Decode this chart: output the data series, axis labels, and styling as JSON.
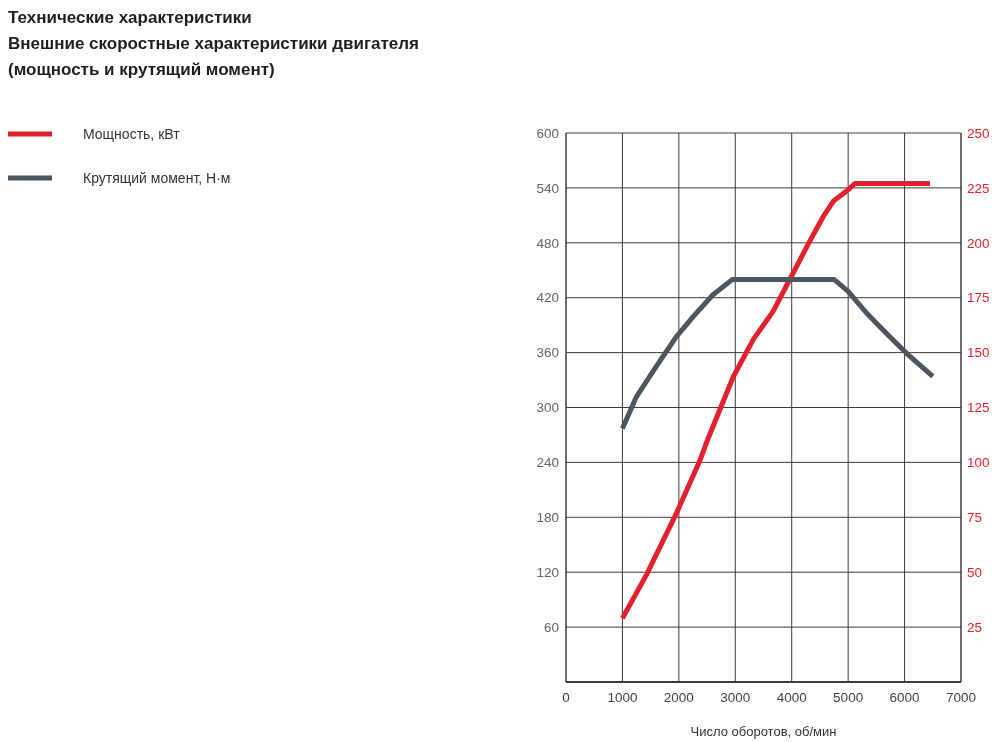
{
  "chart_data": {
    "type": "line",
    "title": "Технические характеристики",
    "subtitle": "Внешние скоростные характеристики двигателя\n(мощность и крутящий момент)",
    "xlabel": "Число оборотов, об/мин",
    "xlim": [
      0,
      7000
    ],
    "xticks": [
      0,
      1000,
      2000,
      3000,
      4000,
      5000,
      6000,
      7000
    ],
    "ylim": [
      0,
      600
    ],
    "yticks": [
      60,
      120,
      180,
      240,
      300,
      360,
      420,
      480,
      540,
      600
    ],
    "y2lim": [
      0,
      250
    ],
    "y2ticks": [
      25,
      50,
      75,
      100,
      125,
      150,
      175,
      200,
      225,
      250
    ],
    "grid": true,
    "legend": "top left",
    "line_style": "solid",
    "series": [
      {
        "name": "Мощность, кВт",
        "color": "#e2202e",
        "axis": "y2",
        "x": [
          1000,
          1430,
          1960,
          2375,
          2520,
          2965,
          3320,
          3675,
          4000,
          4325,
          4560,
          4740,
          4945,
          5120,
          6450
        ],
        "values": [
          29,
          49,
          77,
          101,
          111,
          139,
          156,
          169,
          185,
          201,
          212,
          219,
          223,
          227,
          227
        ]
      },
      {
        "name": "Крутящий момент, Н·м",
        "color": "#4b5660",
        "axis": "y",
        "x": [
          1000,
          1250,
          1600,
          1950,
          2250,
          2600,
          2950,
          4750,
          5000,
          5330,
          5680,
          6040,
          6500
        ],
        "values": [
          277,
          312,
          345,
          377,
          399,
          423,
          440,
          440,
          427,
          403,
          381,
          359,
          334
        ]
      }
    ]
  }
}
